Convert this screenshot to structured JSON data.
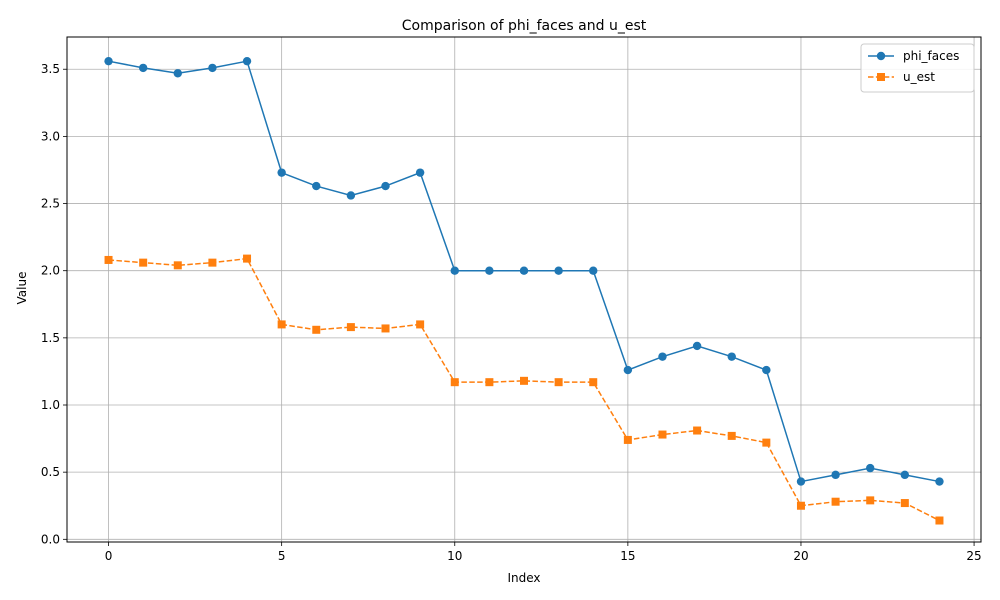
{
  "chart_data": {
    "type": "line",
    "title": "Comparison of phi_faces and u_est",
    "xlabel": "Index",
    "ylabel": "Value",
    "xlim": [
      -1.2,
      25.2
    ],
    "ylim": [
      -0.02,
      3.74
    ],
    "xticks": [
      0,
      5,
      10,
      15,
      20,
      25
    ],
    "yticks": [
      0.0,
      0.5,
      1.0,
      1.5,
      2.0,
      2.5,
      3.0,
      3.5
    ],
    "ytick_labels": [
      "0.0",
      "0.5",
      "1.0",
      "1.5",
      "2.0",
      "2.5",
      "3.0",
      "3.5"
    ],
    "grid": true,
    "legend_position": "upper right",
    "x": [
      0,
      1,
      2,
      3,
      4,
      5,
      6,
      7,
      8,
      9,
      10,
      11,
      12,
      13,
      14,
      15,
      16,
      17,
      18,
      19,
      20,
      21,
      22,
      23,
      24
    ],
    "series": [
      {
        "name": "phi_faces",
        "color": "#1f77b4",
        "linestyle": "solid",
        "marker": "circle",
        "values": [
          3.56,
          3.51,
          3.47,
          3.51,
          3.56,
          2.73,
          2.63,
          2.56,
          2.63,
          2.73,
          2.0,
          2.0,
          2.0,
          2.0,
          2.0,
          1.26,
          1.36,
          1.44,
          1.36,
          1.26,
          0.43,
          0.48,
          0.53,
          0.48,
          0.43
        ]
      },
      {
        "name": "u_est",
        "color": "#ff7f0e",
        "linestyle": "dashed",
        "marker": "square",
        "values": [
          2.08,
          2.06,
          2.04,
          2.06,
          2.09,
          1.6,
          1.56,
          1.58,
          1.57,
          1.6,
          1.17,
          1.17,
          1.18,
          1.17,
          1.17,
          0.74,
          0.78,
          0.81,
          0.77,
          0.72,
          0.25,
          0.28,
          0.29,
          0.27,
          0.14
        ]
      }
    ]
  }
}
